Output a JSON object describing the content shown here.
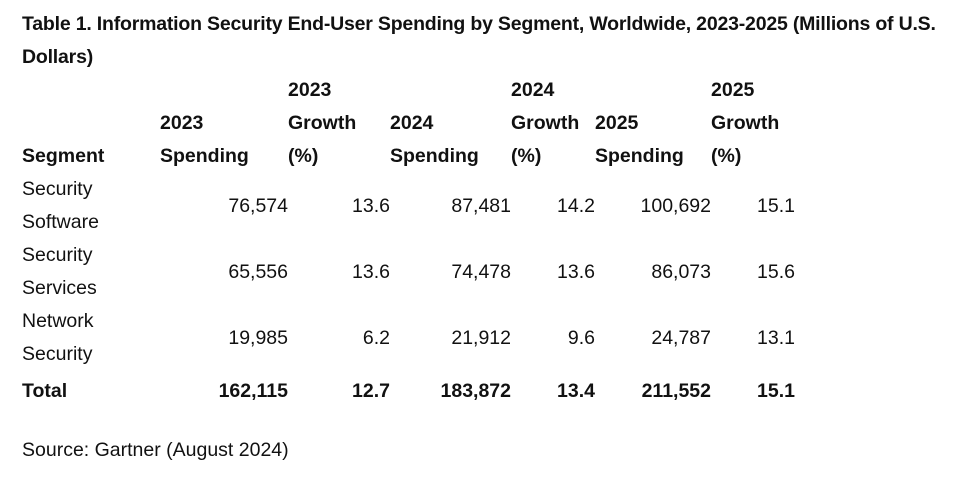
{
  "title": "Table 1. Information Security End-User Spending by Segment, Worldwide, 2023-2025 (Millions of U.S. Dollars)",
  "headers": {
    "segment": "Segment",
    "spend_2023": "2023 Spending",
    "growth_2023": "2023 Growth (%)",
    "spend_2024": "2024 Spending",
    "growth_2024": "2024 Growth (%)",
    "spend_2025": "2025 Spending",
    "growth_2025": "2025 Growth (%)"
  },
  "rows": [
    {
      "segment": "Security Software",
      "spend_2023": "76,574",
      "growth_2023": "13.6",
      "spend_2024": "87,481",
      "growth_2024": "14.2",
      "spend_2025": "100,692",
      "growth_2025": "15.1"
    },
    {
      "segment": "Security Services",
      "spend_2023": "65,556",
      "growth_2023": "13.6",
      "spend_2024": "74,478",
      "growth_2024": "13.6",
      "spend_2025": "86,073",
      "growth_2025": "15.6"
    },
    {
      "segment": "Network Security",
      "spend_2023": "19,985",
      "growth_2023": "6.2",
      "spend_2024": "21,912",
      "growth_2024": "9.6",
      "spend_2025": "24,787",
      "growth_2025": "13.1"
    }
  ],
  "total": {
    "segment": "Total",
    "spend_2023": "162,115",
    "growth_2023": "12.7",
    "spend_2024": "183,872",
    "growth_2024": "13.4",
    "spend_2025": "211,552",
    "growth_2025": "15.1"
  },
  "source": "Source: Gartner (August 2024)"
}
